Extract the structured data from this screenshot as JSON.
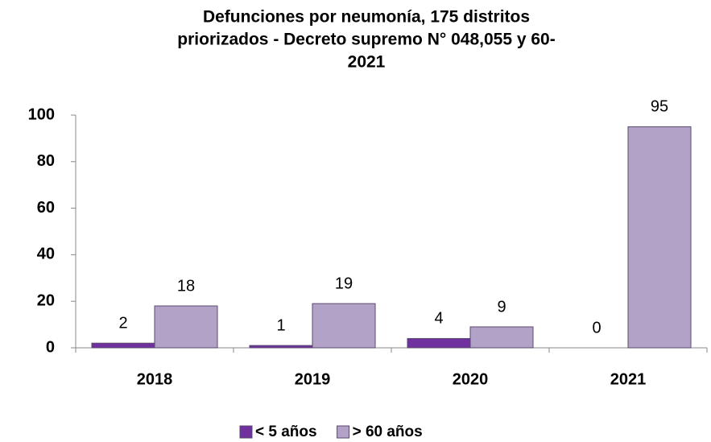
{
  "chart_data": {
    "type": "bar",
    "title": [
      "Defunciones por neumonía, 175 distritos",
      "priorizados - Decreto supremo N° 048,055 y  60-",
      "2021"
    ],
    "categories": [
      "2018",
      "2019",
      "2020",
      "2021"
    ],
    "series": [
      {
        "name": "< 5 años",
        "color": "#7030a0",
        "values": [
          2,
          1,
          4,
          0
        ]
      },
      {
        "name": "> 60 años",
        "color": "#b3a2c7",
        "values": [
          18,
          19,
          9,
          95
        ]
      }
    ],
    "ylim": [
      0,
      100
    ],
    "yticks": [
      0,
      20,
      40,
      60,
      80,
      100
    ]
  }
}
